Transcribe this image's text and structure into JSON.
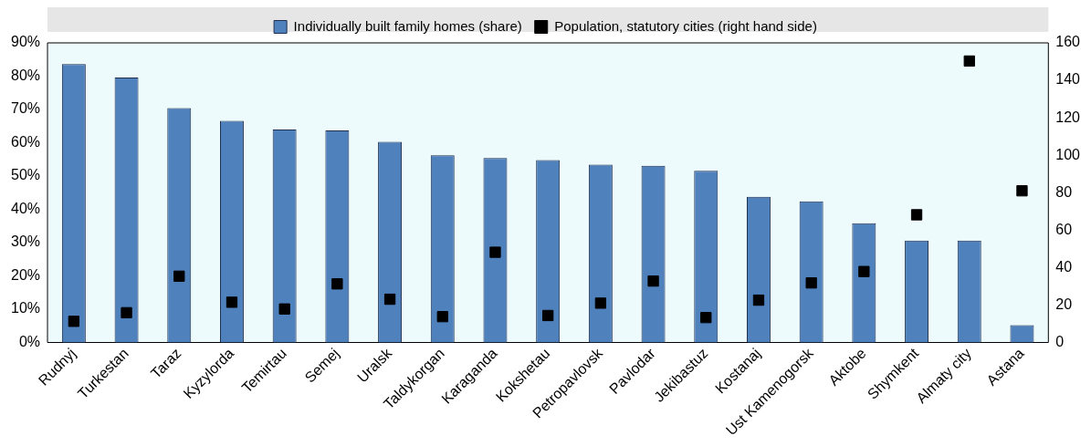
{
  "chart_data": {
    "type": "bar",
    "categories": [
      "Rudnyj",
      "Turkestan",
      "Taraz",
      "Kyzylorda",
      "Temirtau",
      "Semej",
      "Uralsk",
      "Taldykorgan",
      "Karaganda",
      "Kokshetau",
      "Petropavlovsk",
      "Pavlodar",
      "Jekibastuz",
      "Kostanaj",
      "Ust Kamenogorsk",
      "Aktobe",
      "Shymkent",
      "Almaty city",
      "Astana"
    ],
    "series": [
      {
        "name": "Individually built family homes (share)",
        "color": "#4f81bd",
        "values": [
          83.6,
          79.6,
          70.4,
          66.6,
          64.0,
          63.7,
          60.3,
          56.2,
          55.4,
          54.8,
          53.4,
          53.1,
          51.6,
          43.8,
          42.4,
          35.8,
          30.6,
          30.6,
          5.2
        ]
      },
      {
        "name": "Population, statutory cities (right hand side)",
        "type": "scatter",
        "axis": "y2",
        "color": "#000000",
        "values": [
          11.3,
          15.9,
          35.4,
          21.5,
          17.9,
          31.3,
          23.1,
          13.8,
          48.2,
          14.4,
          21.0,
          32.8,
          13.3,
          22.6,
          31.8,
          37.9,
          68.2,
          150.3,
          81.0
        ]
      }
    ],
    "ylim": [
      0,
      90
    ],
    "yticks": [
      {
        "value": 0,
        "label": "0%"
      },
      {
        "value": 10,
        "label": "10%"
      },
      {
        "value": 20,
        "label": "20%"
      },
      {
        "value": 30,
        "label": "30%"
      },
      {
        "value": 40,
        "label": "40%"
      },
      {
        "value": 50,
        "label": "50%"
      },
      {
        "value": 60,
        "label": "60%"
      },
      {
        "value": 70,
        "label": "70%"
      },
      {
        "value": 80,
        "label": "80%"
      },
      {
        "value": 90,
        "label": "90%"
      }
    ],
    "y2lim": [
      0,
      160
    ],
    "y2ticks": [
      0,
      20,
      40,
      60,
      80,
      100,
      120,
      140,
      160
    ],
    "grid": false,
    "legend": "top",
    "marker": "square"
  }
}
